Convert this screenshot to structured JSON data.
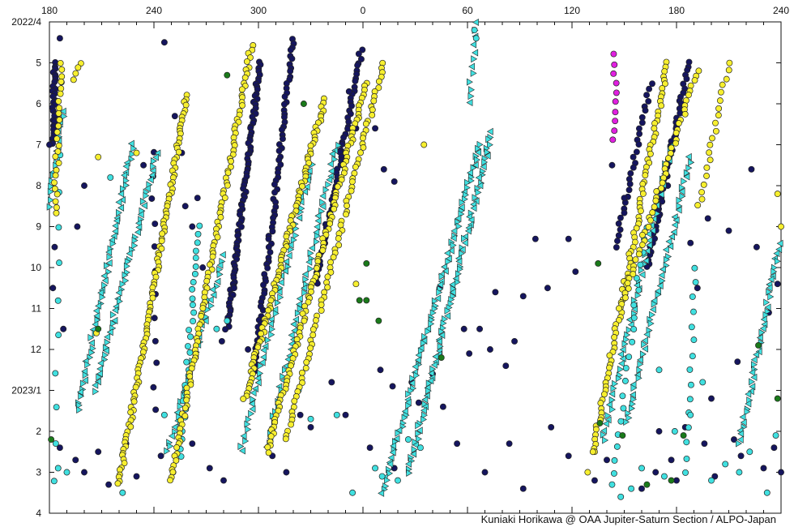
{
  "credit": "Kuniaki Horikawa @ OAA Jupiter-Saturn Section / ALPO-Japan",
  "chart_data": {
    "type": "scatter",
    "title": "",
    "xlabel": "",
    "ylabel": "",
    "x_domain": [
      180,
      540
    ],
    "x_ticks": [
      {
        "value": 180,
        "label": "180"
      },
      {
        "value": 240,
        "label": "240"
      },
      {
        "value": 300,
        "label": "300"
      },
      {
        "value": 360,
        "label": "0"
      },
      {
        "value": 420,
        "label": "60"
      },
      {
        "value": 480,
        "label": "120"
      },
      {
        "value": 540,
        "label": "180"
      },
      {
        "value": 600,
        "label": "240"
      }
    ],
    "x_minor_step": 10,
    "y_ticks": [
      {
        "value": 0,
        "label": "2022/4"
      },
      {
        "value": 1,
        "label": "5"
      },
      {
        "value": 2,
        "label": "6"
      },
      {
        "value": 3,
        "label": "7"
      },
      {
        "value": 4,
        "label": "8"
      },
      {
        "value": 5,
        "label": "9"
      },
      {
        "value": 6,
        "label": "10"
      },
      {
        "value": 7,
        "label": "11"
      },
      {
        "value": 8,
        "label": "12"
      },
      {
        "value": 9,
        "label": "2023/1"
      },
      {
        "value": 10,
        "label": "2"
      },
      {
        "value": 11,
        "label": "3"
      },
      {
        "value": 12,
        "label": "4"
      }
    ],
    "y_domain": [
      0,
      12
    ],
    "y_unit": "months since 2022/4",
    "colors": {
      "navy": "#15155e",
      "cyan": "#40e0e0",
      "yellow": "#f7ef2f",
      "green": "#1a7a1a",
      "magenta": "#e020e0",
      "outline": "#222222"
    },
    "series": [
      {
        "color": "navy",
        "marker": "circle",
        "tracks": [
          {
            "x0": 183,
            "y0": 1.0,
            "x1": 182,
            "y1": 3.0,
            "n": 30
          },
          {
            "x0": 301,
            "y0": 1.0,
            "x1": 282,
            "y1": 7.5,
            "n": 90
          },
          {
            "x0": 320,
            "y0": 0.4,
            "x1": 298,
            "y1": 8.5,
            "n": 80
          },
          {
            "x0": 359,
            "y0": 0.7,
            "x1": 333,
            "y1": 6.4,
            "n": 60
          },
          {
            "x0": 547,
            "y0": 1.0,
            "x1": 523,
            "y1": 6.0,
            "n": 50
          },
          {
            "x0": 525,
            "y0": 1.5,
            "x1": 505,
            "y1": 5.5,
            "n": 30
          },
          {
            "x0": 239,
            "y0": 3.2,
            "x1": 241,
            "y1": 9.5,
            "n": 12
          }
        ],
        "scatter": [
          [
            186,
            0.4
          ],
          [
            180,
            3.0
          ],
          [
            183,
            5.5
          ],
          [
            182,
            6.5
          ],
          [
            188,
            7.5
          ],
          [
            196,
            5.0
          ],
          [
            200,
            4.0
          ],
          [
            234,
            3.5
          ],
          [
            246,
            0.5
          ],
          [
            252,
            2.3
          ],
          [
            256,
            3.2
          ],
          [
            258,
            4.5
          ],
          [
            262,
            5.0
          ],
          [
            265,
            4.3
          ],
          [
            268,
            6.0
          ],
          [
            279,
            7.8
          ],
          [
            286,
            6.5
          ],
          [
            294,
            8.0
          ],
          [
            352,
            1.7
          ],
          [
            356,
            2.6
          ],
          [
            367,
            2.6
          ],
          [
            372,
            3.6
          ],
          [
            378,
            3.9
          ],
          [
            370,
            8.5
          ],
          [
            377,
            8.9
          ],
          [
            388,
            8.8
          ],
          [
            400,
            8.6
          ],
          [
            404,
            6.5
          ],
          [
            406,
            9.4
          ],
          [
            418,
            7.5
          ],
          [
            421,
            8.1
          ],
          [
            427,
            7.5
          ],
          [
            433,
            8.0
          ],
          [
            436,
            6.6
          ],
          [
            442,
            8.4
          ],
          [
            447,
            7.8
          ],
          [
            452,
            6.7
          ],
          [
            459,
            5.3
          ],
          [
            466,
            6.5
          ],
          [
            478,
            5.3
          ],
          [
            482,
            6.1
          ],
          [
            503,
            3.5
          ],
          [
            510,
            4.3
          ],
          [
            529,
            4.6
          ],
          [
            535,
            4.0
          ],
          [
            548,
            5.4
          ],
          [
            552,
            6.5
          ],
          [
            558,
            4.8
          ],
          [
            570,
            5.1
          ],
          [
            583,
            3.6
          ],
          [
            586,
            5.5
          ],
          [
            562,
            11.1
          ],
          [
            573,
            10.2
          ],
          [
            577,
            10.6
          ],
          [
            545,
            9.9
          ],
          [
            537,
            10.7
          ],
          [
            528,
            11.0
          ],
          [
            520,
            11.4
          ],
          [
            500,
            10.7
          ],
          [
            493,
            11.2
          ],
          [
            186,
            10.4
          ],
          [
            195,
            10.7
          ],
          [
            200,
            11.0
          ],
          [
            208,
            10.5
          ],
          [
            214,
            11.3
          ],
          [
            224,
            10.3
          ],
          [
            230,
            11.1
          ],
          [
            244,
            10.6
          ],
          [
            251,
            11.0
          ],
          [
            262,
            10.3
          ],
          [
            272,
            10.9
          ],
          [
            280,
            11.2
          ],
          [
            308,
            10.6
          ],
          [
            316,
            11.0
          ],
          [
            324,
            9.6
          ],
          [
            330,
            9.9
          ],
          [
            342,
            8.8
          ],
          [
            350,
            9.6
          ],
          [
            364,
            10.4
          ],
          [
            378,
            10.9
          ],
          [
            392,
            9.3
          ],
          [
            414,
            10.3
          ],
          [
            430,
            11.0
          ],
          [
            444,
            10.3
          ],
          [
            452,
            11.4
          ],
          [
            468,
            9.9
          ],
          [
            478,
            10.6
          ],
          [
            590,
            10.9
          ],
          [
            596,
            10.4
          ],
          [
            600,
            11.0
          ],
          [
            560,
            9.2
          ],
          [
            556,
            10.3
          ],
          [
            540,
            11.2
          ],
          [
            530,
            10.0
          ],
          [
            593,
            7.1
          ],
          [
            598,
            6.4
          ],
          [
            575,
            8.3
          ]
        ]
      },
      {
        "color": "cyan",
        "marker": "triangle",
        "tracks": [
          {
            "x0": 188,
            "y0": 2.2,
            "x1": 180,
            "y1": 4.5,
            "n": 20
          },
          {
            "x0": 228,
            "y0": 3.0,
            "x1": 196,
            "y1": 9.5,
            "n": 60
          },
          {
            "x0": 242,
            "y0": 3.2,
            "x1": 206,
            "y1": 9.0,
            "n": 55
          },
          {
            "x0": 280,
            "y0": 5.7,
            "x1": 248,
            "y1": 10.5,
            "n": 40
          },
          {
            "x0": 345,
            "y0": 3.0,
            "x1": 305,
            "y1": 10.4,
            "n": 60
          },
          {
            "x0": 330,
            "y0": 3.5,
            "x1": 290,
            "y1": 10.5,
            "n": 55
          },
          {
            "x0": 434,
            "y0": 2.7,
            "x1": 386,
            "y1": 11.0,
            "n": 90
          },
          {
            "x0": 427,
            "y0": 3.0,
            "x1": 371,
            "y1": 11.5,
            "n": 90
          },
          {
            "x0": 537,
            "y0": 3.0,
            "x1": 498,
            "y1": 10.2,
            "n": 60
          },
          {
            "x0": 548,
            "y0": 3.3,
            "x1": 511,
            "y1": 9.8,
            "n": 55
          },
          {
            "x0": 601,
            "y0": 5.0,
            "x1": 576,
            "y1": 10.3,
            "n": 50
          },
          {
            "x0": 425,
            "y0": 0.0,
            "x1": 421,
            "y1": 2.0,
            "n": 12
          }
        ],
        "scatter": []
      },
      {
        "color": "cyan",
        "marker": "circle",
        "tracks": [
          {
            "x0": 186,
            "y0": 1.5,
            "x1": 183,
            "y1": 11.2,
            "n": 12
          },
          {
            "x0": 266,
            "y0": 5.0,
            "x1": 255,
            "y1": 10.6,
            "n": 30
          },
          {
            "x0": 522,
            "y0": 5.0,
            "x1": 504,
            "y1": 11.0,
            "n": 20
          },
          {
            "x0": 551,
            "y0": 6.0,
            "x1": 545,
            "y1": 11.0,
            "n": 15
          }
        ],
        "scatter": [
          [
            215,
            3.8
          ],
          [
            222,
            11.5
          ],
          [
            246,
            9.6
          ],
          [
            270,
            6.8
          ],
          [
            276,
            7.5
          ],
          [
            282,
            7.3
          ],
          [
            323,
            9.0
          ],
          [
            330,
            9.7
          ],
          [
            345,
            9.6
          ],
          [
            354,
            11.5
          ],
          [
            367,
            10.9
          ],
          [
            371,
            11.1
          ],
          [
            380,
            11.2
          ],
          [
            386,
            10.2
          ],
          [
            393,
            10.4
          ],
          [
            503,
            11.3
          ],
          [
            508,
            11.6
          ],
          [
            514,
            11.4
          ],
          [
            520,
            10.9
          ],
          [
            533,
            11.1
          ],
          [
            560,
            11.2
          ],
          [
            568,
            10.8
          ],
          [
            576,
            11.0
          ],
          [
            582,
            10.5
          ],
          [
            592,
            11.5
          ],
          [
            597,
            10.1
          ],
          [
            539,
            10.0
          ],
          [
            548,
            9.6
          ],
          [
            555,
            8.8
          ],
          [
            530,
            8.5
          ],
          [
            190,
            11.0
          ],
          [
            185,
            10.9
          ],
          [
            424,
            0.2
          ],
          [
            425,
            0.4
          ]
        ]
      },
      {
        "color": "yellow",
        "marker": "circle",
        "tracks": [
          {
            "x0": 187,
            "y0": 1.0,
            "x1": 183,
            "y1": 4.7,
            "n": 25
          },
          {
            "x0": 259,
            "y0": 1.8,
            "x1": 220,
            "y1": 11.3,
            "n": 110
          },
          {
            "x0": 296,
            "y0": 0.6,
            "x1": 250,
            "y1": 11.2,
            "n": 110
          },
          {
            "x0": 338,
            "y0": 1.9,
            "x1": 292,
            "y1": 9.2,
            "n": 90
          },
          {
            "x0": 362,
            "y0": 1.5,
            "x1": 305,
            "y1": 10.5,
            "n": 100
          },
          {
            "x0": 372,
            "y0": 1.0,
            "x1": 316,
            "y1": 10.2,
            "n": 80
          },
          {
            "x0": 535,
            "y0": 1.0,
            "x1": 492,
            "y1": 10.5,
            "n": 90
          },
          {
            "x0": 552,
            "y0": 1.2,
            "x1": 508,
            "y1": 7.0,
            "n": 50
          },
          {
            "x0": 570,
            "y0": 1.0,
            "x1": 553,
            "y1": 4.5,
            "n": 20
          },
          {
            "x0": 198,
            "y0": 1.0,
            "x1": 193,
            "y1": 1.4,
            "n": 4
          }
        ],
        "scatter": [
          [
            356,
            6.4
          ],
          [
            395,
            3.0
          ],
          [
            230,
            3.2
          ],
          [
            207,
            7.6
          ],
          [
            208,
            3.3
          ],
          [
            489,
            11.0
          ],
          [
            492,
            10.5
          ],
          [
            600,
            5.0
          ],
          [
            598,
            4.2
          ]
        ]
      },
      {
        "color": "green",
        "marker": "circle",
        "tracks": [],
        "scatter": [
          [
            282,
            1.3
          ],
          [
            326,
            2.0
          ],
          [
            362,
            5.9
          ],
          [
            358,
            6.8
          ],
          [
            362,
            6.8
          ],
          [
            369,
            7.3
          ],
          [
            405,
            8.2
          ],
          [
            208,
            7.5
          ],
          [
            181,
            10.2
          ],
          [
            495,
            5.9
          ],
          [
            496,
            9.8
          ],
          [
            509,
            10.1
          ],
          [
            523,
            11.3
          ],
          [
            544,
            10.1
          ],
          [
            537,
            11.2
          ],
          [
            598,
            9.2
          ],
          [
            587,
            7.9
          ]
        ]
      },
      {
        "color": "magenta",
        "marker": "circle",
        "tracks": [
          {
            "x0": 505,
            "y0": 0.8,
            "x1": 504,
            "y1": 2.9,
            "n": 10
          }
        ],
        "scatter": []
      }
    ]
  }
}
